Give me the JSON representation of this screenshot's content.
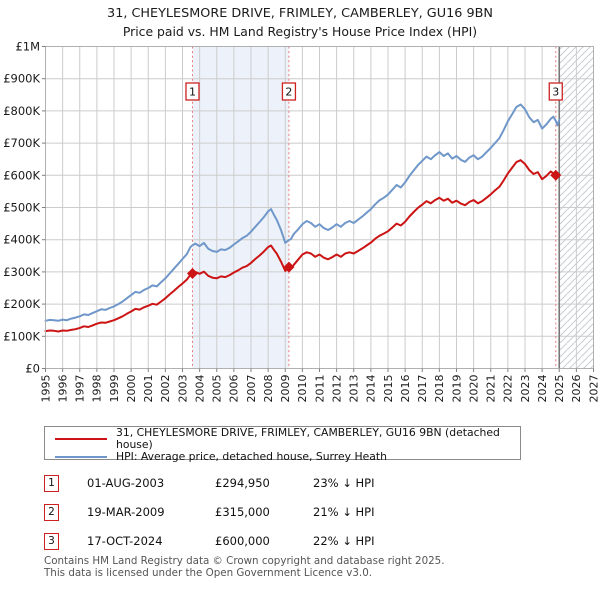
{
  "title": {
    "line1": "31, CHEYLESMORE DRIVE, FRIMLEY, CAMBERLEY, GU16 9BN",
    "line2": "Price paid vs. HM Land Registry's House Price Index (HPI)"
  },
  "colors": {
    "property_red": "#cc1414",
    "hpi_blue": "#6f97c9",
    "event_line_pink": "#e87a7a",
    "ownership_shading": "#edf2fa",
    "grid": "#cccccc",
    "plot_border": "#b0b0b0",
    "hatch": "#c9ccd4",
    "future_boundary": "#777777",
    "marker_box_border": "#cc2222",
    "tick_text": "#1a1a1a",
    "footer_text": "#555555"
  },
  "chart_data": {
    "type": "line",
    "xlim": [
      1995,
      2027
    ],
    "ylim_k": [
      0,
      1000
    ],
    "grid": "on",
    "x_tick_years": [
      "1995",
      "1996",
      "1997",
      "1998",
      "1999",
      "2000",
      "2001",
      "2002",
      "2003",
      "2004",
      "2005",
      "2006",
      "2007",
      "2008",
      "2009",
      "2010",
      "2011",
      "2012",
      "2013",
      "2014",
      "2015",
      "2016",
      "2017",
      "2018",
      "2019",
      "2020",
      "2021",
      "2022",
      "2023",
      "2024",
      "2025",
      "2026",
      "2027"
    ],
    "y_tick_labels": [
      "£0",
      "£100K",
      "£200K",
      "£300K",
      "£400K",
      "£500K",
      "£600K",
      "£700K",
      "£800K",
      "£900K",
      "£1M"
    ],
    "shaded_region": {
      "from_year": 2003.583,
      "to_year": 2009.215
    },
    "future_region": {
      "from_year": 2025.0,
      "to_year": 2027.0
    },
    "series": [
      {
        "name": "31, CHEYLESMORE DRIVE, FRIMLEY, CAMBERLEY, GU16 9BN (detached house)",
        "color": "#cc1414",
        "points": [
          [
            1995.0,
            116
          ],
          [
            1995.25,
            118
          ],
          [
            1995.5,
            117
          ],
          [
            1995.75,
            115
          ],
          [
            1996.0,
            118
          ],
          [
            1996.25,
            117
          ],
          [
            1996.5,
            120
          ],
          [
            1996.75,
            122
          ],
          [
            1997.0,
            126
          ],
          [
            1997.25,
            131
          ],
          [
            1997.5,
            129
          ],
          [
            1997.75,
            134
          ],
          [
            1998.0,
            139
          ],
          [
            1998.25,
            143
          ],
          [
            1998.5,
            142
          ],
          [
            1998.75,
            146
          ],
          [
            1999.0,
            150
          ],
          [
            1999.25,
            156
          ],
          [
            1999.5,
            162
          ],
          [
            1999.75,
            170
          ],
          [
            2000.0,
            177
          ],
          [
            2000.25,
            185
          ],
          [
            2000.5,
            183
          ],
          [
            2000.75,
            190
          ],
          [
            2001.0,
            195
          ],
          [
            2001.25,
            201
          ],
          [
            2001.5,
            198
          ],
          [
            2001.75,
            208
          ],
          [
            2002.0,
            218
          ],
          [
            2002.25,
            230
          ],
          [
            2002.5,
            241
          ],
          [
            2002.75,
            253
          ],
          [
            2003.0,
            264
          ],
          [
            2003.25,
            276
          ],
          [
            2003.45,
            290
          ],
          [
            2003.583,
            294.95
          ],
          [
            2003.75,
            300
          ],
          [
            2004.0,
            294
          ],
          [
            2004.25,
            301
          ],
          [
            2004.5,
            288
          ],
          [
            2004.75,
            282
          ],
          [
            2005.0,
            280
          ],
          [
            2005.25,
            286
          ],
          [
            2005.5,
            284
          ],
          [
            2005.75,
            290
          ],
          [
            2006.0,
            298
          ],
          [
            2006.25,
            305
          ],
          [
            2006.5,
            313
          ],
          [
            2006.75,
            318
          ],
          [
            2007.0,
            328
          ],
          [
            2007.25,
            340
          ],
          [
            2007.5,
            351
          ],
          [
            2007.75,
            363
          ],
          [
            2008.0,
            377
          ],
          [
            2008.17,
            382
          ],
          [
            2008.33,
            369
          ],
          [
            2008.5,
            357
          ],
          [
            2008.75,
            332
          ],
          [
            2009.0,
            303
          ],
          [
            2009.215,
            315
          ],
          [
            2009.33,
            310
          ],
          [
            2009.5,
            322
          ],
          [
            2009.75,
            338
          ],
          [
            2010.0,
            354
          ],
          [
            2010.25,
            361
          ],
          [
            2010.5,
            357
          ],
          [
            2010.75,
            347
          ],
          [
            2011.0,
            354
          ],
          [
            2011.25,
            344
          ],
          [
            2011.5,
            339
          ],
          [
            2011.75,
            346
          ],
          [
            2012.0,
            354
          ],
          [
            2012.25,
            347
          ],
          [
            2012.5,
            357
          ],
          [
            2012.75,
            361
          ],
          [
            2013.0,
            357
          ],
          [
            2013.25,
            365
          ],
          [
            2013.5,
            373
          ],
          [
            2013.75,
            382
          ],
          [
            2014.0,
            391
          ],
          [
            2014.25,
            403
          ],
          [
            2014.5,
            412
          ],
          [
            2014.75,
            419
          ],
          [
            2015.0,
            426
          ],
          [
            2015.25,
            438
          ],
          [
            2015.5,
            450
          ],
          [
            2015.75,
            444
          ],
          [
            2016.0,
            456
          ],
          [
            2016.25,
            472
          ],
          [
            2016.5,
            486
          ],
          [
            2016.75,
            499
          ],
          [
            2017.0,
            509
          ],
          [
            2017.25,
            520
          ],
          [
            2017.5,
            513
          ],
          [
            2017.75,
            523
          ],
          [
            2018.0,
            530
          ],
          [
            2018.25,
            521
          ],
          [
            2018.5,
            527
          ],
          [
            2018.75,
            515
          ],
          [
            2019.0,
            521
          ],
          [
            2019.25,
            512
          ],
          [
            2019.5,
            507
          ],
          [
            2019.75,
            517
          ],
          [
            2020.0,
            523
          ],
          [
            2020.25,
            513
          ],
          [
            2020.5,
            520
          ],
          [
            2020.75,
            530
          ],
          [
            2021.0,
            541
          ],
          [
            2021.25,
            553
          ],
          [
            2021.5,
            564
          ],
          [
            2021.75,
            584
          ],
          [
            2022.0,
            606
          ],
          [
            2022.25,
            624
          ],
          [
            2022.5,
            641
          ],
          [
            2022.75,
            647
          ],
          [
            2023.0,
            635
          ],
          [
            2023.25,
            616
          ],
          [
            2023.5,
            604
          ],
          [
            2023.75,
            610
          ],
          [
            2024.0,
            588
          ],
          [
            2024.25,
            598
          ],
          [
            2024.5,
            612
          ],
          [
            2024.796,
            600
          ]
        ]
      },
      {
        "name": "HPI: Average price, detached house, Surrey Heath",
        "color": "#6f97c9",
        "points": [
          [
            1995.0,
            148
          ],
          [
            1995.25,
            151
          ],
          [
            1995.5,
            150
          ],
          [
            1995.75,
            148
          ],
          [
            1996.0,
            152
          ],
          [
            1996.25,
            150
          ],
          [
            1996.5,
            155
          ],
          [
            1996.75,
            158
          ],
          [
            1997.0,
            162
          ],
          [
            1997.25,
            168
          ],
          [
            1997.5,
            166
          ],
          [
            1997.75,
            172
          ],
          [
            1998.0,
            178
          ],
          [
            1998.25,
            184
          ],
          [
            1998.5,
            182
          ],
          [
            1998.75,
            188
          ],
          [
            1999.0,
            193
          ],
          [
            1999.25,
            200
          ],
          [
            1999.5,
            208
          ],
          [
            1999.75,
            218
          ],
          [
            2000.0,
            228
          ],
          [
            2000.25,
            238
          ],
          [
            2000.5,
            235
          ],
          [
            2000.75,
            244
          ],
          [
            2001.0,
            250
          ],
          [
            2001.25,
            258
          ],
          [
            2001.5,
            255
          ],
          [
            2001.75,
            268
          ],
          [
            2002.0,
            280
          ],
          [
            2002.25,
            295
          ],
          [
            2002.5,
            310
          ],
          [
            2002.75,
            325
          ],
          [
            2003.0,
            340
          ],
          [
            2003.25,
            355
          ],
          [
            2003.45,
            376
          ],
          [
            2003.583,
            383
          ],
          [
            2003.75,
            388
          ],
          [
            2004.0,
            380
          ],
          [
            2004.25,
            390
          ],
          [
            2004.5,
            372
          ],
          [
            2004.75,
            365
          ],
          [
            2005.0,
            362
          ],
          [
            2005.25,
            370
          ],
          [
            2005.5,
            368
          ],
          [
            2005.75,
            375
          ],
          [
            2006.0,
            385
          ],
          [
            2006.25,
            395
          ],
          [
            2006.5,
            405
          ],
          [
            2006.75,
            412
          ],
          [
            2007.0,
            425
          ],
          [
            2007.25,
            440
          ],
          [
            2007.5,
            455
          ],
          [
            2007.75,
            470
          ],
          [
            2008.0,
            488
          ],
          [
            2008.17,
            495
          ],
          [
            2008.33,
            478
          ],
          [
            2008.5,
            462
          ],
          [
            2008.75,
            430
          ],
          [
            2009.0,
            390
          ],
          [
            2009.215,
            399
          ],
          [
            2009.33,
            402
          ],
          [
            2009.5,
            418
          ],
          [
            2009.75,
            432
          ],
          [
            2010.0,
            448
          ],
          [
            2010.25,
            458
          ],
          [
            2010.5,
            452
          ],
          [
            2010.75,
            440
          ],
          [
            2011.0,
            448
          ],
          [
            2011.25,
            436
          ],
          [
            2011.5,
            430
          ],
          [
            2011.75,
            438
          ],
          [
            2012.0,
            448
          ],
          [
            2012.25,
            440
          ],
          [
            2012.5,
            452
          ],
          [
            2012.75,
            458
          ],
          [
            2013.0,
            452
          ],
          [
            2013.25,
            462
          ],
          [
            2013.5,
            472
          ],
          [
            2013.75,
            484
          ],
          [
            2014.0,
            495
          ],
          [
            2014.25,
            510
          ],
          [
            2014.5,
            522
          ],
          [
            2014.75,
            530
          ],
          [
            2015.0,
            540
          ],
          [
            2015.25,
            555
          ],
          [
            2015.5,
            570
          ],
          [
            2015.75,
            562
          ],
          [
            2016.0,
            578
          ],
          [
            2016.25,
            598
          ],
          [
            2016.5,
            615
          ],
          [
            2016.75,
            632
          ],
          [
            2017.0,
            645
          ],
          [
            2017.25,
            658
          ],
          [
            2017.5,
            650
          ],
          [
            2017.75,
            662
          ],
          [
            2018.0,
            672
          ],
          [
            2018.25,
            660
          ],
          [
            2018.5,
            668
          ],
          [
            2018.75,
            652
          ],
          [
            2019.0,
            660
          ],
          [
            2019.25,
            648
          ],
          [
            2019.5,
            642
          ],
          [
            2019.75,
            655
          ],
          [
            2020.0,
            662
          ],
          [
            2020.25,
            650
          ],
          [
            2020.5,
            658
          ],
          [
            2020.75,
            672
          ],
          [
            2021.0,
            685
          ],
          [
            2021.25,
            700
          ],
          [
            2021.5,
            715
          ],
          [
            2021.75,
            740
          ],
          [
            2022.0,
            768
          ],
          [
            2022.25,
            790
          ],
          [
            2022.5,
            812
          ],
          [
            2022.75,
            820
          ],
          [
            2023.0,
            805
          ],
          [
            2023.25,
            780
          ],
          [
            2023.5,
            765
          ],
          [
            2023.75,
            772
          ],
          [
            2024.0,
            745
          ],
          [
            2024.25,
            758
          ],
          [
            2024.5,
            775
          ],
          [
            2024.65,
            782
          ],
          [
            2024.796,
            769
          ],
          [
            2024.9,
            755
          ],
          [
            2025.0,
            772
          ]
        ]
      }
    ],
    "markers": [
      {
        "label": "1",
        "year": 2003.583,
        "price_k": 294.95
      },
      {
        "label": "2",
        "year": 2009.215,
        "price_k": 315
      },
      {
        "label": "3",
        "year": 2024.796,
        "price_k": 600
      }
    ]
  },
  "legend": {
    "items": [
      {
        "label": "31, CHEYLESMORE DRIVE, FRIMLEY, CAMBERLEY, GU16 9BN (detached house)",
        "color": "#cc1414"
      },
      {
        "label": "HPI: Average price, detached house, Surrey Heath",
        "color": "#6f97c9"
      }
    ]
  },
  "table": {
    "rows": [
      {
        "num": "1",
        "date": "01-AUG-2003",
        "price": "£294,950",
        "delta": "23% ↓ HPI"
      },
      {
        "num": "2",
        "date": "19-MAR-2009",
        "price": "£315,000",
        "delta": "21% ↓ HPI"
      },
      {
        "num": "3",
        "date": "17-OCT-2024",
        "price": "£600,000",
        "delta": "22% ↓ HPI"
      }
    ]
  },
  "footer": {
    "line1": "Contains HM Land Registry data © Crown copyright and database right 2025.",
    "line2": "This data is licensed under the Open Government Licence v3.0."
  }
}
